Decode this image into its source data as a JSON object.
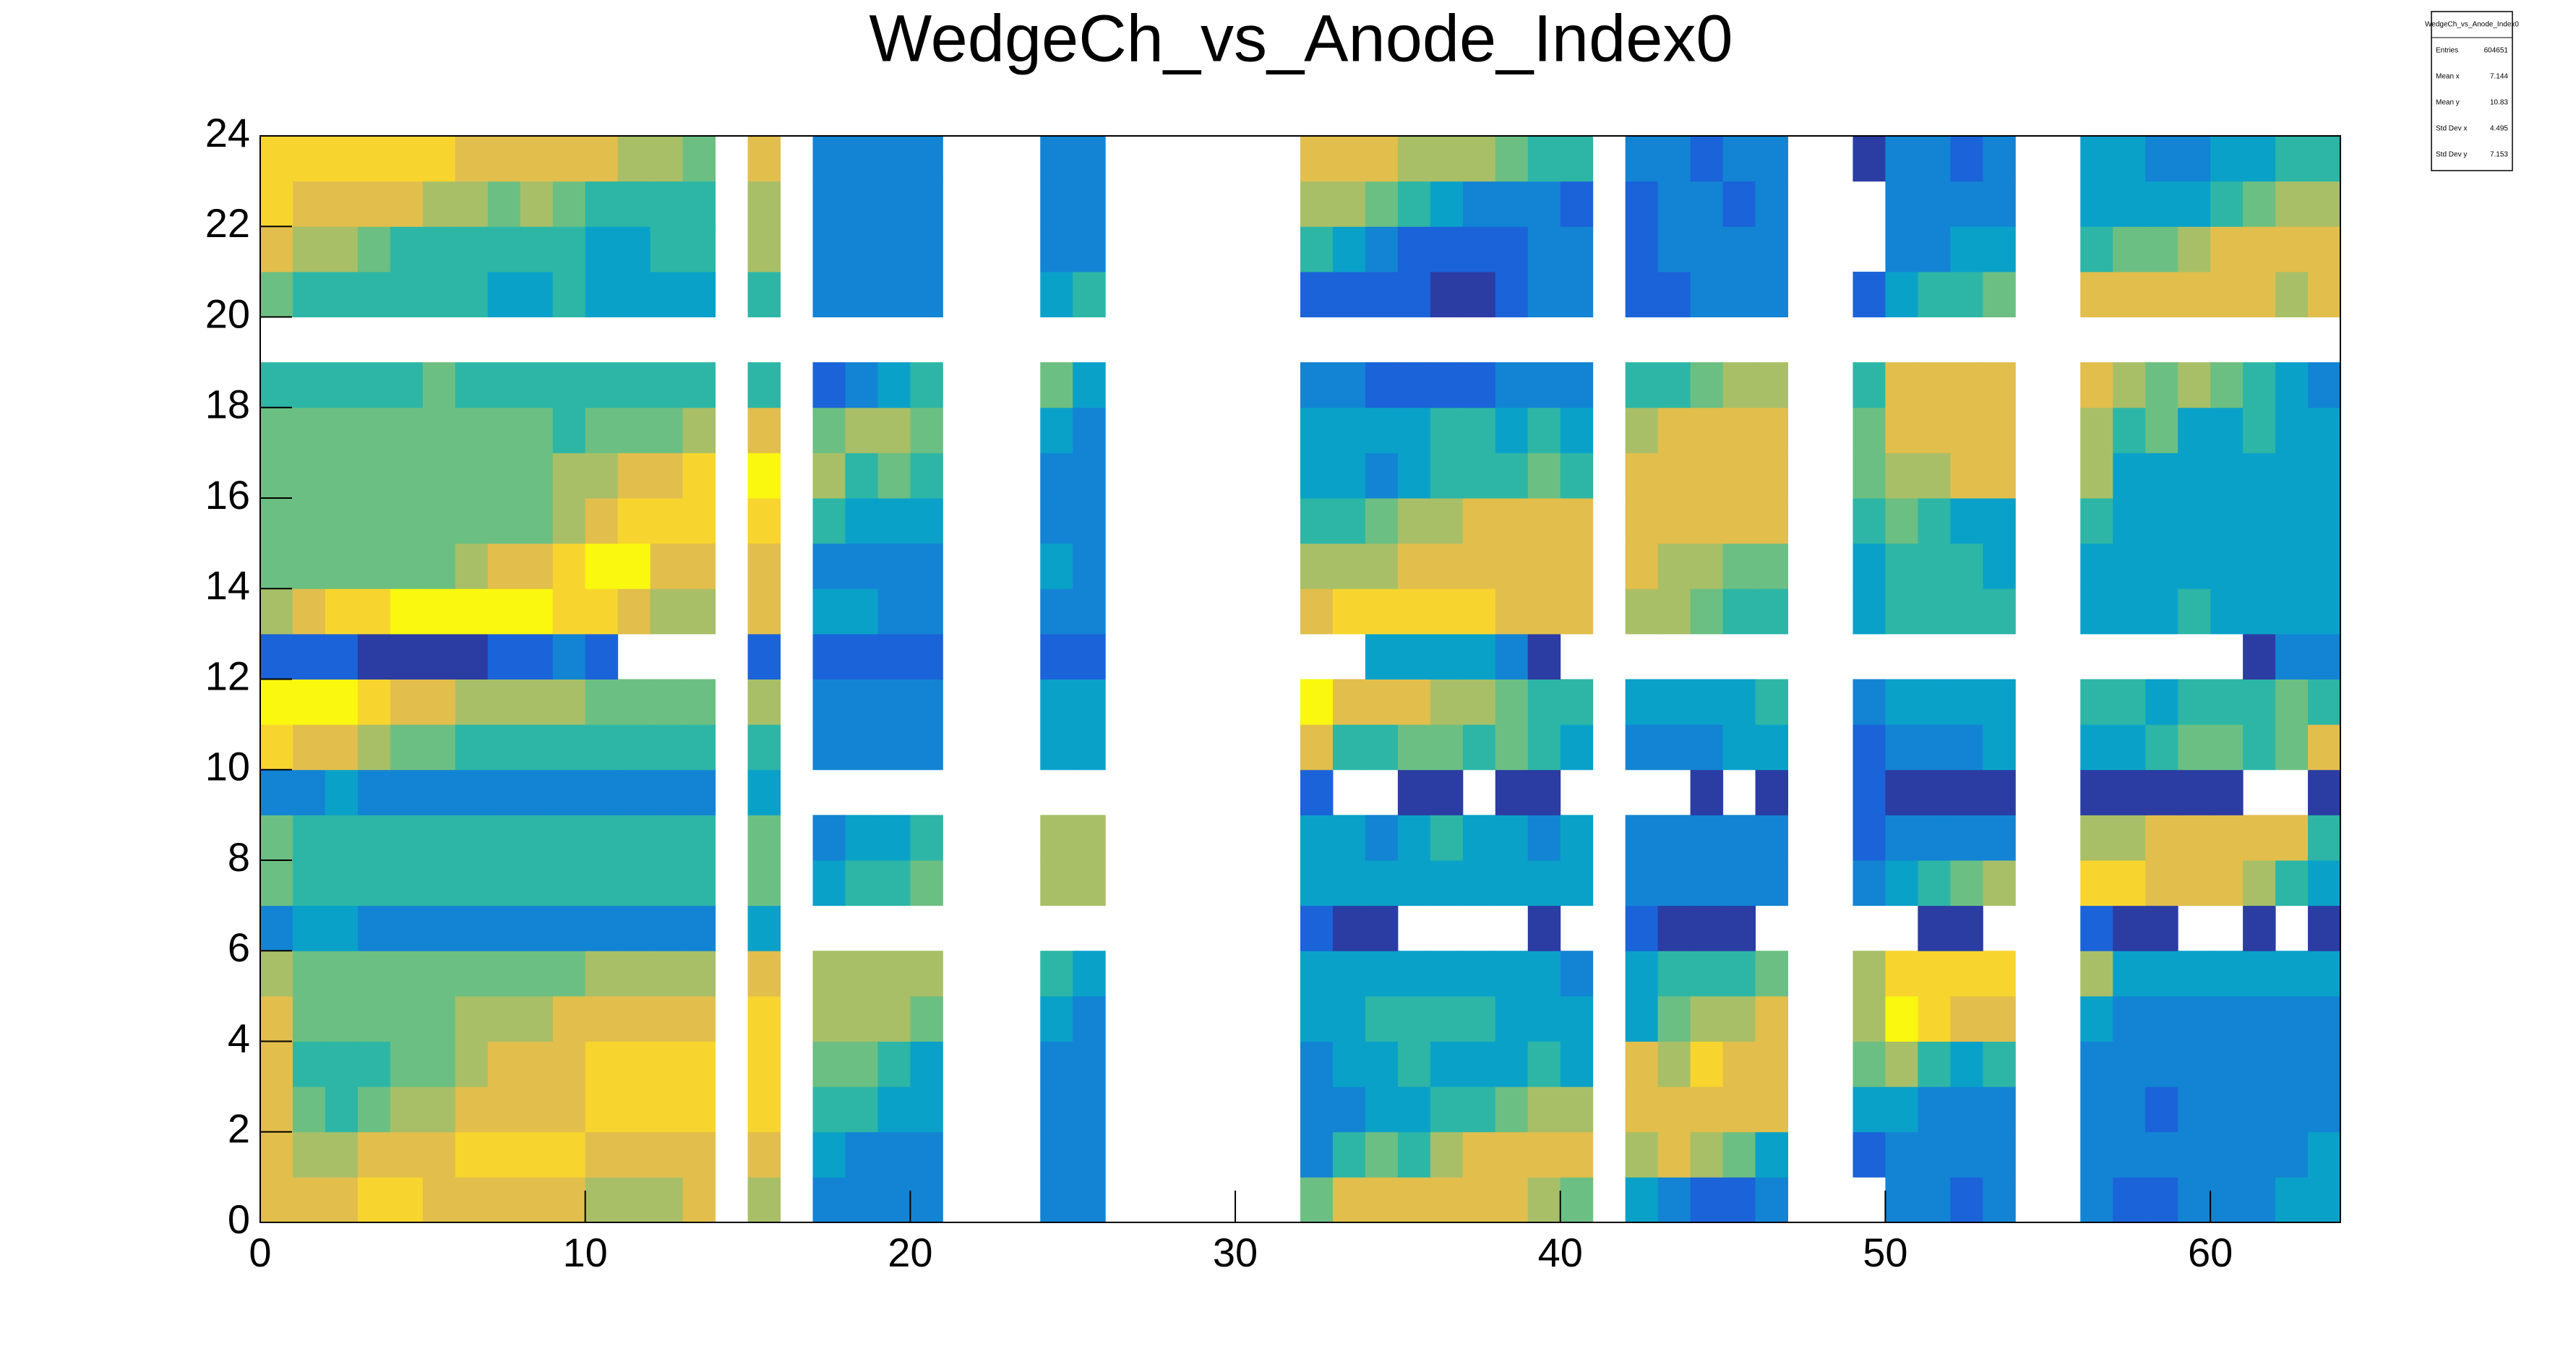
{
  "chart_data": {
    "type": "heatmap",
    "title": "WedgeCh_vs_Anode_Index0",
    "xlim": [
      0,
      64
    ],
    "ylim": [
      0,
      24
    ],
    "xticks": [
      0,
      10,
      20,
      30,
      40,
      50,
      60
    ],
    "yticks": [
      0,
      2,
      4,
      6,
      8,
      10,
      12,
      14,
      16,
      18,
      20,
      22,
      24
    ],
    "palette": [
      "#2b3ca3",
      "#1b63d8",
      "#1384d4",
      "#0aa1c9",
      "#2db6a6",
      "#6cbf82",
      "#a8bf67",
      "#e2be4c",
      "#f8d52e",
      "#f9f80e"
    ],
    "z": [
      [
        8,
        8,
        8,
        9,
        9,
        8,
        8,
        8,
        8,
        8,
        7,
        7,
        7,
        8,
        null,
        7,
        null,
        3,
        3,
        3,
        3,
        null,
        null,
        null,
        3,
        3,
        null,
        null,
        null,
        null,
        null,
        null,
        6,
        8,
        8,
        8,
        8,
        8,
        8,
        7,
        6,
        null,
        4,
        3,
        2,
        2,
        3,
        null,
        null,
        null,
        3,
        3,
        2,
        3,
        null,
        null,
        3,
        2,
        2,
        3,
        3,
        3,
        4,
        4
      ],
      [
        8,
        7,
        7,
        8,
        8,
        8,
        9,
        9,
        9,
        9,
        8,
        8,
        8,
        8,
        null,
        8,
        null,
        4,
        3,
        3,
        3,
        null,
        null,
        null,
        3,
        3,
        null,
        null,
        null,
        null,
        null,
        null,
        3,
        5,
        6,
        5,
        7,
        8,
        8,
        8,
        8,
        null,
        7,
        8,
        7,
        6,
        4,
        null,
        null,
        2,
        3,
        3,
        3,
        3,
        null,
        null,
        3,
        3,
        3,
        3,
        3,
        3,
        3,
        4
      ],
      [
        8,
        6,
        5,
        6,
        7,
        7,
        8,
        8,
        8,
        8,
        9,
        9,
        9,
        9,
        null,
        9,
        null,
        5,
        5,
        4,
        4,
        null,
        null,
        null,
        3,
        3,
        null,
        null,
        null,
        null,
        null,
        null,
        3,
        3,
        4,
        4,
        5,
        5,
        6,
        7,
        7,
        null,
        8,
        8,
        8,
        8,
        8,
        null,
        null,
        4,
        4,
        3,
        3,
        3,
        null,
        null,
        3,
        3,
        2,
        3,
        3,
        3,
        3,
        3
      ],
      [
        8,
        5,
        5,
        5,
        6,
        6,
        7,
        8,
        8,
        8,
        9,
        9,
        9,
        9,
        null,
        9,
        null,
        6,
        6,
        5,
        4,
        null,
        null,
        null,
        3,
        3,
        null,
        null,
        null,
        null,
        null,
        null,
        3,
        4,
        4,
        5,
        4,
        4,
        4,
        5,
        4,
        null,
        8,
        7,
        9,
        8,
        8,
        null,
        null,
        6,
        7,
        5,
        4,
        5,
        null,
        null,
        3,
        3,
        3,
        3,
        3,
        3,
        3,
        3
      ],
      [
        8,
        6,
        6,
        6,
        6,
        6,
        7,
        7,
        7,
        8,
        8,
        8,
        8,
        8,
        null,
        9,
        null,
        7,
        7,
        7,
        6,
        null,
        null,
        null,
        4,
        3,
        null,
        null,
        null,
        null,
        null,
        null,
        4,
        4,
        5,
        5,
        5,
        5,
        4,
        4,
        4,
        null,
        4,
        6,
        7,
        7,
        8,
        null,
        null,
        7,
        10,
        9,
        8,
        8,
        null,
        null,
        4,
        3,
        3,
        3,
        3,
        3,
        3,
        3
      ],
      [
        7,
        6,
        6,
        6,
        6,
        6,
        6,
        6,
        6,
        6,
        7,
        7,
        7,
        7,
        null,
        8,
        null,
        7,
        7,
        7,
        7,
        null,
        null,
        null,
        5,
        4,
        null,
        null,
        null,
        null,
        null,
        null,
        4,
        4,
        4,
        4,
        4,
        4,
        4,
        4,
        3,
        null,
        4,
        5,
        5,
        5,
        6,
        null,
        null,
        7,
        9,
        9,
        9,
        9,
        null,
        null,
        7,
        4,
        4,
        4,
        4,
        4,
        4,
        4
      ],
      [
        3,
        4,
        4,
        3,
        3,
        3,
        3,
        3,
        3,
        3,
        3,
        3,
        3,
        3,
        null,
        4,
        null,
        null,
        null,
        null,
        null,
        null,
        null,
        null,
        null,
        null,
        null,
        null,
        null,
        null,
        null,
        null,
        2,
        1,
        1,
        null,
        null,
        null,
        null,
        1,
        null,
        null,
        2,
        1,
        1,
        1,
        null,
        null,
        null,
        null,
        null,
        1,
        1,
        null,
        null,
        null,
        2,
        1,
        1,
        null,
        null,
        1,
        null,
        1
      ],
      [
        6,
        5,
        5,
        5,
        5,
        5,
        5,
        5,
        5,
        5,
        5,
        5,
        5,
        5,
        null,
        6,
        null,
        4,
        5,
        5,
        6,
        null,
        null,
        null,
        7,
        7,
        null,
        null,
        null,
        null,
        null,
        null,
        4,
        4,
        4,
        4,
        4,
        4,
        4,
        4,
        4,
        null,
        3,
        3,
        3,
        3,
        3,
        null,
        null,
        3,
        4,
        5,
        6,
        7,
        null,
        null,
        9,
        9,
        8,
        8,
        8,
        7,
        5,
        4
      ],
      [
        6,
        5,
        5,
        5,
        5,
        5,
        5,
        5,
        5,
        5,
        5,
        5,
        5,
        5,
        null,
        6,
        null,
        3,
        4,
        4,
        5,
        null,
        null,
        null,
        7,
        7,
        null,
        null,
        null,
        null,
        null,
        null,
        4,
        4,
        3,
        4,
        5,
        4,
        4,
        3,
        4,
        null,
        3,
        3,
        3,
        3,
        3,
        null,
        null,
        2,
        3,
        3,
        3,
        3,
        null,
        null,
        7,
        7,
        8,
        8,
        8,
        8,
        8,
        5
      ],
      [
        3,
        3,
        4,
        3,
        3,
        3,
        3,
        3,
        3,
        3,
        3,
        3,
        3,
        3,
        null,
        4,
        null,
        null,
        null,
        null,
        null,
        null,
        null,
        null,
        null,
        null,
        null,
        null,
        null,
        null,
        null,
        null,
        2,
        null,
        null,
        1,
        1,
        null,
        1,
        1,
        null,
        null,
        null,
        null,
        1,
        null,
        1,
        null,
        null,
        2,
        1,
        1,
        1,
        1,
        null,
        null,
        1,
        1,
        1,
        1,
        1,
        null,
        null,
        1
      ],
      [
        9,
        8,
        8,
        7,
        6,
        6,
        5,
        5,
        5,
        5,
        5,
        5,
        5,
        5,
        null,
        5,
        null,
        3,
        3,
        3,
        3,
        null,
        null,
        null,
        4,
        4,
        null,
        null,
        null,
        null,
        null,
        null,
        8,
        5,
        5,
        6,
        6,
        5,
        6,
        5,
        4,
        null,
        3,
        3,
        3,
        4,
        4,
        null,
        null,
        2,
        3,
        3,
        3,
        4,
        null,
        null,
        4,
        4,
        5,
        6,
        6,
        5,
        6,
        8
      ],
      [
        10,
        10,
        10,
        9,
        8,
        8,
        7,
        7,
        7,
        7,
        6,
        6,
        6,
        6,
        null,
        7,
        null,
        3,
        3,
        3,
        3,
        null,
        null,
        null,
        4,
        4,
        null,
        null,
        null,
        null,
        null,
        null,
        10,
        8,
        8,
        8,
        7,
        7,
        6,
        5,
        5,
        null,
        4,
        4,
        4,
        4,
        5,
        null,
        null,
        3,
        4,
        4,
        4,
        4,
        null,
        null,
        5,
        5,
        4,
        5,
        5,
        5,
        6,
        5
      ],
      [
        2,
        2,
        2,
        1,
        1,
        1,
        1,
        2,
        2,
        3,
        2,
        null,
        null,
        null,
        null,
        2,
        null,
        2,
        2,
        2,
        2,
        null,
        null,
        null,
        2,
        2,
        null,
        null,
        null,
        null,
        null,
        null,
        null,
        null,
        4,
        4,
        4,
        4,
        3,
        1,
        null,
        null,
        null,
        null,
        null,
        null,
        null,
        null,
        null,
        null,
        null,
        null,
        null,
        null,
        null,
        null,
        null,
        null,
        null,
        null,
        null,
        1,
        3,
        3
      ],
      [
        7,
        8,
        9,
        9,
        10,
        10,
        10,
        10,
        10,
        9,
        9,
        8,
        7,
        7,
        null,
        8,
        null,
        4,
        4,
        3,
        3,
        null,
        null,
        null,
        3,
        3,
        null,
        null,
        null,
        null,
        null,
        null,
        8,
        9,
        9,
        9,
        9,
        9,
        8,
        8,
        8,
        null,
        7,
        7,
        6,
        5,
        5,
        null,
        null,
        4,
        5,
        5,
        5,
        5,
        null,
        null,
        4,
        4,
        4,
        5,
        4,
        4,
        4,
        4
      ],
      [
        6,
        6,
        6,
        6,
        6,
        6,
        7,
        8,
        8,
        9,
        10,
        10,
        8,
        8,
        null,
        8,
        null,
        3,
        3,
        3,
        3,
        null,
        null,
        null,
        4,
        3,
        null,
        null,
        null,
        null,
        null,
        null,
        7,
        7,
        7,
        8,
        8,
        8,
        8,
        8,
        8,
        null,
        8,
        7,
        7,
        6,
        6,
        null,
        null,
        4,
        5,
        5,
        5,
        4,
        null,
        null,
        4,
        4,
        4,
        4,
        4,
        4,
        4,
        4
      ],
      [
        6,
        6,
        6,
        6,
        6,
        6,
        6,
        6,
        6,
        7,
        8,
        9,
        9,
        9,
        null,
        9,
        null,
        5,
        4,
        4,
        4,
        null,
        null,
        null,
        3,
        3,
        null,
        null,
        null,
        null,
        null,
        null,
        5,
        5,
        6,
        7,
        7,
        8,
        8,
        8,
        8,
        null,
        8,
        8,
        8,
        8,
        8,
        null,
        null,
        5,
        6,
        5,
        4,
        4,
        null,
        null,
        5,
        4,
        4,
        4,
        4,
        4,
        4,
        4
      ],
      [
        6,
        6,
        6,
        6,
        6,
        6,
        6,
        6,
        6,
        7,
        7,
        8,
        8,
        9,
        null,
        10,
        null,
        7,
        5,
        6,
        5,
        null,
        null,
        null,
        3,
        3,
        null,
        null,
        null,
        null,
        null,
        null,
        4,
        4,
        3,
        4,
        5,
        5,
        5,
        6,
        5,
        null,
        8,
        8,
        8,
        8,
        8,
        null,
        null,
        6,
        7,
        7,
        8,
        8,
        null,
        null,
        7,
        4,
        4,
        4,
        4,
        4,
        4,
        4
      ],
      [
        6,
        6,
        6,
        6,
        6,
        6,
        6,
        6,
        6,
        5,
        6,
        6,
        6,
        7,
        null,
        8,
        null,
        6,
        7,
        7,
        6,
        null,
        null,
        null,
        4,
        3,
        null,
        null,
        null,
        null,
        null,
        null,
        4,
        4,
        4,
        4,
        5,
        5,
        4,
        5,
        4,
        null,
        7,
        8,
        8,
        8,
        8,
        null,
        null,
        6,
        8,
        8,
        8,
        8,
        null,
        null,
        7,
        5,
        6,
        4,
        4,
        5,
        4,
        4
      ],
      [
        5,
        5,
        5,
        5,
        5,
        6,
        5,
        5,
        5,
        5,
        5,
        5,
        5,
        5,
        null,
        5,
        null,
        2,
        3,
        4,
        5,
        null,
        null,
        null,
        6,
        4,
        null,
        null,
        null,
        null,
        null,
        null,
        3,
        3,
        2,
        2,
        2,
        2,
        3,
        3,
        3,
        null,
        5,
        5,
        6,
        7,
        7,
        null,
        null,
        5,
        8,
        8,
        8,
        8,
        null,
        null,
        8,
        7,
        6,
        7,
        6,
        5,
        4,
        3
      ],
      [
        null,
        null,
        null,
        null,
        null,
        null,
        null,
        null,
        null,
        null,
        null,
        null,
        null,
        null,
        null,
        null,
        null,
        null,
        null,
        null,
        null,
        null,
        null,
        null,
        null,
        null,
        null,
        null,
        null,
        null,
        null,
        null,
        null,
        null,
        null,
        null,
        null,
        null,
        null,
        null,
        null,
        null,
        null,
        null,
        null,
        null,
        null,
        null,
        null,
        null,
        null,
        null,
        null,
        null,
        null,
        null,
        null,
        null,
        null,
        null,
        null,
        null,
        null,
        null
      ],
      [
        6,
        5,
        5,
        5,
        5,
        5,
        5,
        4,
        4,
        5,
        4,
        4,
        4,
        4,
        null,
        5,
        null,
        3,
        3,
        3,
        3,
        null,
        null,
        null,
        4,
        5,
        null,
        null,
        null,
        null,
        null,
        null,
        2,
        2,
        2,
        2,
        1,
        1,
        2,
        3,
        3,
        null,
        2,
        2,
        3,
        3,
        3,
        null,
        null,
        2,
        4,
        5,
        5,
        6,
        null,
        null,
        8,
        8,
        8,
        8,
        8,
        8,
        7,
        8
      ],
      [
        8,
        7,
        7,
        6,
        5,
        5,
        5,
        5,
        5,
        5,
        4,
        4,
        5,
        5,
        null,
        7,
        null,
        3,
        3,
        3,
        3,
        null,
        null,
        null,
        3,
        3,
        null,
        null,
        null,
        null,
        null,
        null,
        5,
        4,
        3,
        2,
        2,
        2,
        2,
        3,
        3,
        null,
        2,
        3,
        3,
        3,
        3,
        null,
        null,
        null,
        3,
        3,
        4,
        4,
        null,
        null,
        5,
        6,
        6,
        7,
        8,
        8,
        8,
        8
      ],
      [
        9,
        8,
        8,
        8,
        8,
        7,
        7,
        6,
        7,
        6,
        5,
        5,
        5,
        5,
        null,
        7,
        null,
        3,
        3,
        3,
        3,
        null,
        null,
        null,
        3,
        3,
        null,
        null,
        null,
        null,
        null,
        null,
        7,
        7,
        6,
        5,
        4,
        3,
        3,
        3,
        2,
        null,
        2,
        3,
        3,
        2,
        3,
        null,
        null,
        null,
        3,
        3,
        3,
        3,
        null,
        null,
        4,
        4,
        4,
        4,
        5,
        6,
        7,
        7
      ],
      [
        9,
        9,
        9,
        9,
        9,
        9,
        8,
        8,
        8,
        8,
        8,
        7,
        7,
        6,
        null,
        8,
        null,
        3,
        3,
        3,
        3,
        null,
        null,
        null,
        3,
        3,
        null,
        null,
        null,
        null,
        null,
        null,
        8,
        8,
        8,
        7,
        7,
        7,
        6,
        5,
        5,
        null,
        3,
        3,
        2,
        3,
        3,
        null,
        null,
        1,
        3,
        3,
        2,
        3,
        null,
        null,
        4,
        4,
        3,
        3,
        4,
        4,
        5,
        5
      ]
    ],
    "stats": {
      "title": "WedgeCh_vs_Anode_Index0",
      "rows": [
        {
          "label": "Entries",
          "value": 604651
        },
        {
          "label": "Mean x",
          "value": 7.144
        },
        {
          "label": "Mean y",
          "value": 10.83
        },
        {
          "label": "Std Dev x",
          "value": 4.495
        },
        {
          "label": "Std Dev y",
          "value": 7.153
        }
      ]
    }
  }
}
